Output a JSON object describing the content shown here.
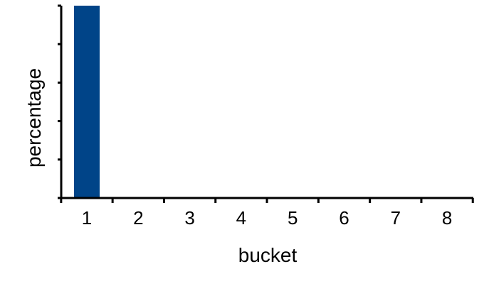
{
  "chart_data": {
    "type": "bar",
    "categories": [
      "1",
      "2",
      "3",
      "4",
      "5",
      "6",
      "7",
      "8"
    ],
    "values": [
      100,
      0,
      0,
      0,
      0,
      0,
      0,
      0
    ],
    "title": "",
    "xlabel": "bucket",
    "ylabel": "percentage",
    "ylim": [
      0,
      100
    ],
    "y_tick_labels_shown": false,
    "grid": false,
    "legend": "none",
    "bar_color": "#004488"
  }
}
